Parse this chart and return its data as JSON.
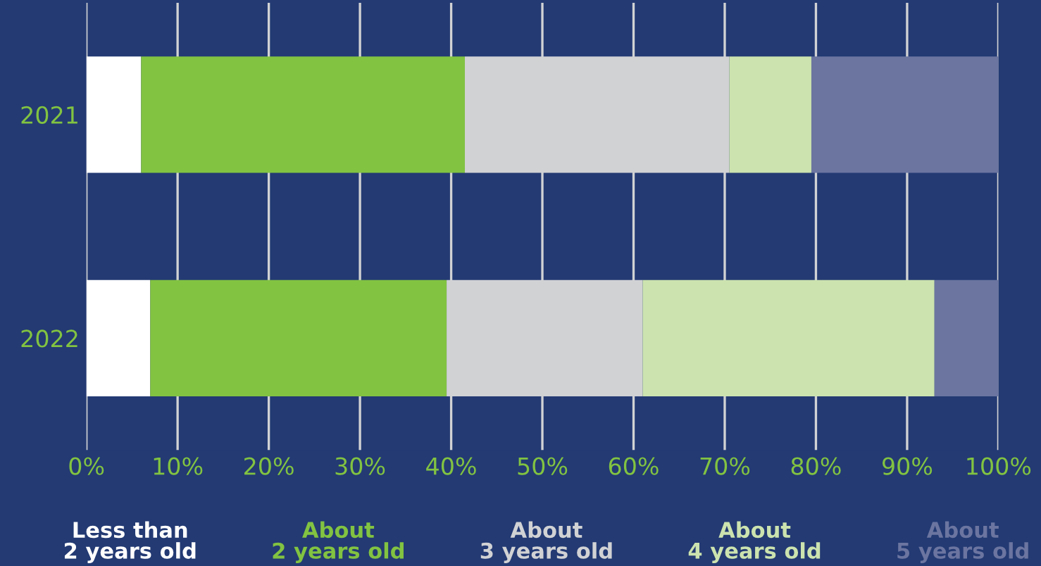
{
  "chart_data": {
    "type": "bar",
    "orientation": "horizontal",
    "stacked": true,
    "categories": [
      "2021",
      "2022"
    ],
    "series": [
      {
        "name": "Less than\n2 years old",
        "color": "#ffffff",
        "values": [
          6,
          7
        ]
      },
      {
        "name": "About\n2 years old",
        "color": "#82c341",
        "values": [
          35.5,
          32.5
        ]
      },
      {
        "name": "About\n3 years old",
        "color": "#d1d2d4",
        "values": [
          29,
          21.5
        ]
      },
      {
        "name": "About\n4 years old",
        "color": "#cce3af",
        "values": [
          9,
          32
        ]
      },
      {
        "name": "About\n5 years old",
        "color": "#6b75a0",
        "values": [
          20.5,
          7
        ]
      }
    ],
    "xlim": [
      0,
      100
    ],
    "xticks": [
      {
        "value": 0,
        "label": "0%"
      },
      {
        "value": 10,
        "label": "10%"
      },
      {
        "value": 20,
        "label": "20%"
      },
      {
        "value": 30,
        "label": "30%"
      },
      {
        "value": 40,
        "label": "40%"
      },
      {
        "value": 50,
        "label": "50%"
      },
      {
        "value": 60,
        "label": "60%"
      },
      {
        "value": 70,
        "label": "70%"
      },
      {
        "value": 80,
        "label": "80%"
      },
      {
        "value": 90,
        "label": "90%"
      },
      {
        "value": 100,
        "label": "100%"
      }
    ],
    "grid": "x",
    "legend": "bottom"
  }
}
